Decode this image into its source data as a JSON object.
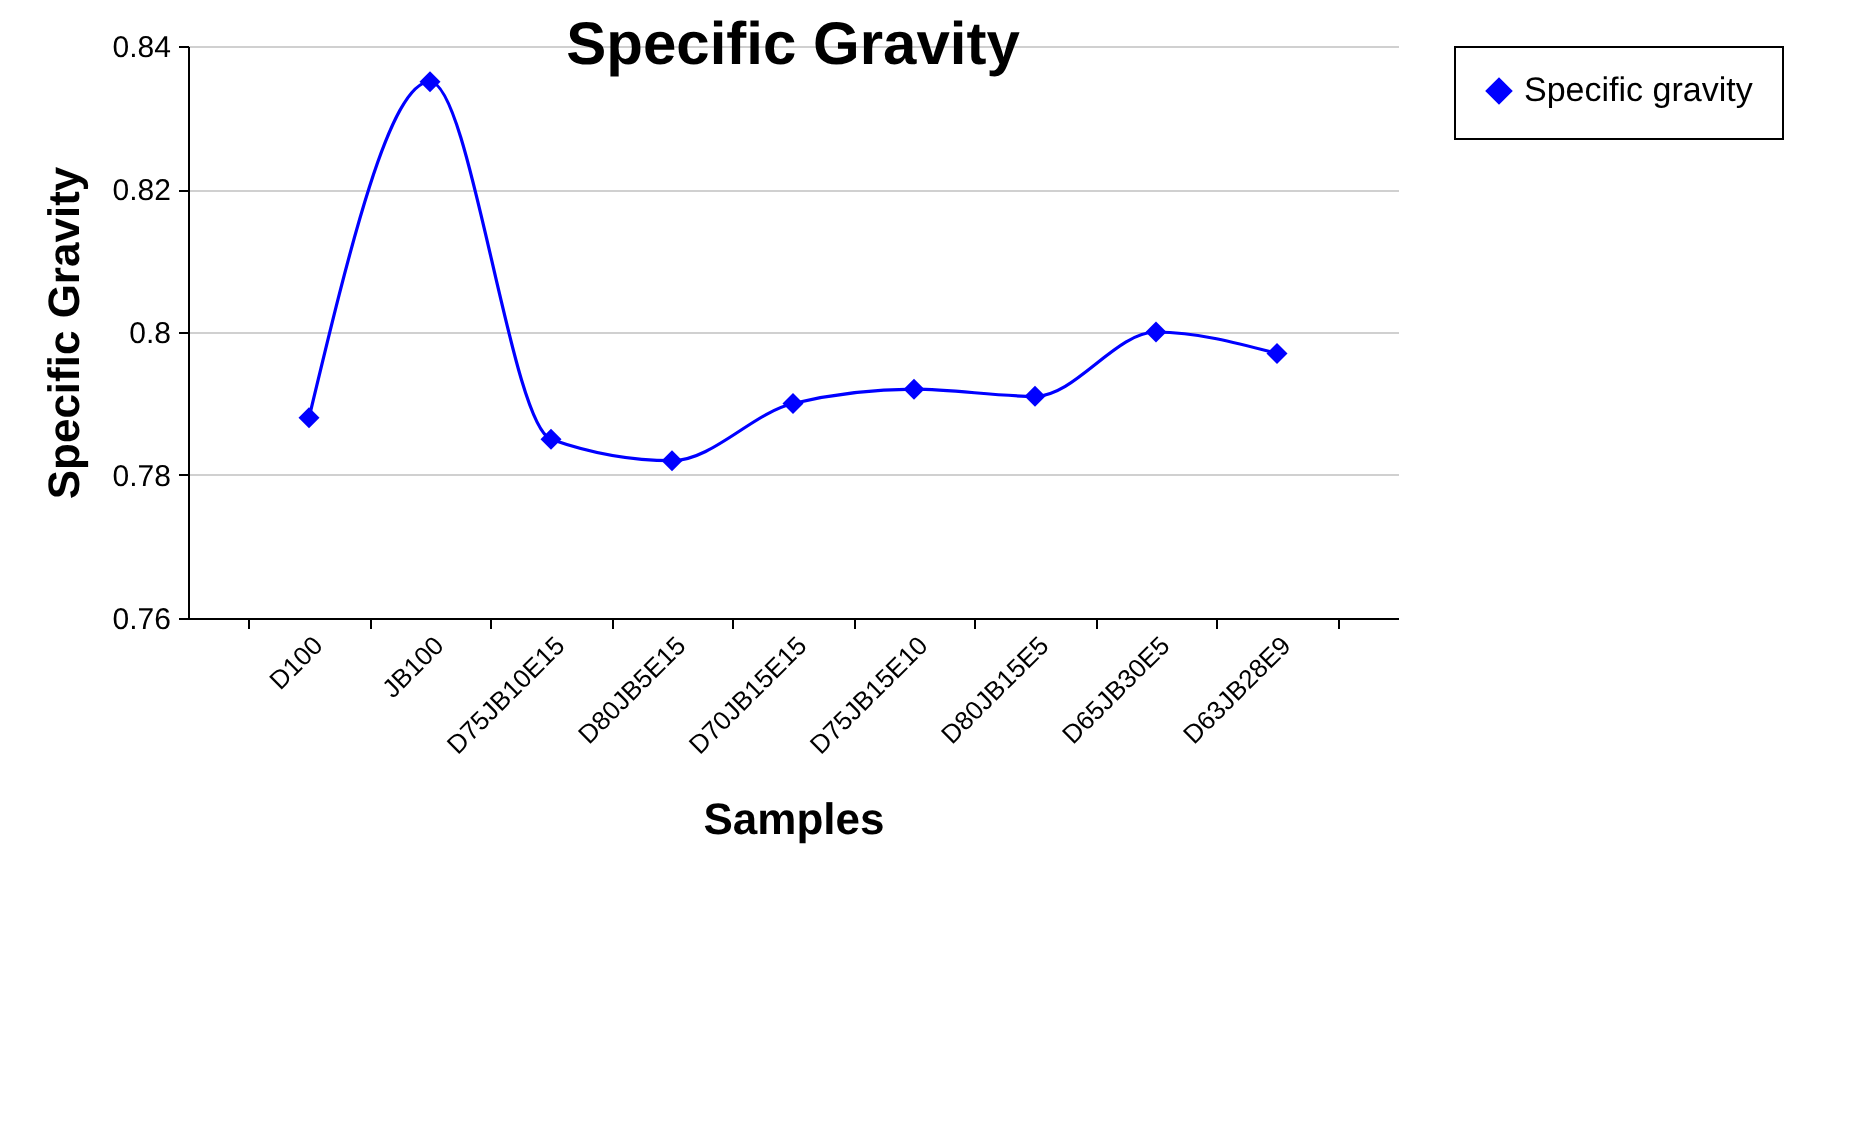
{
  "chart_data": {
    "type": "line",
    "title": "Specific Gravity",
    "xlabel": "Samples",
    "ylabel": "Specific Gravity",
    "categories": [
      "D100",
      "JB100",
      "D75JB10E15",
      "D80JB5E15",
      "D70JB15E15",
      "D75JB15E10",
      "D80JB15E5",
      "D65JB30E5",
      "D63JB28E9"
    ],
    "series": [
      {
        "name": "Specific gravity",
        "color": "#0000ff",
        "values": [
          0.788,
          0.835,
          0.785,
          0.782,
          0.79,
          0.792,
          0.791,
          0.8,
          0.797
        ]
      }
    ],
    "ylim": [
      0.76,
      0.84
    ],
    "yticks": [
      0.76,
      0.78,
      0.8,
      0.82,
      0.84
    ],
    "grid": "y",
    "legend": "right",
    "marker": "diamond"
  }
}
